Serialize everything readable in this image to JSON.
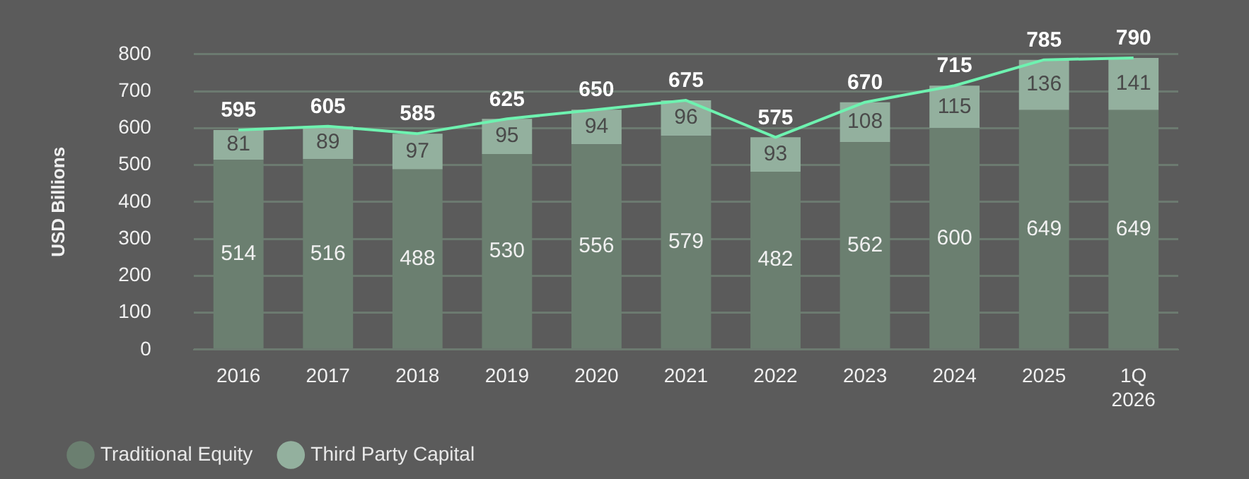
{
  "chart_data": {
    "type": "bar",
    "stacked": true,
    "ylabel": "USD Billions",
    "categories": [
      "2016",
      "2017",
      "2018",
      "2019",
      "2020",
      "2021",
      "2022",
      "2023",
      "2024",
      "2025",
      "1Q 2026"
    ],
    "series": [
      {
        "name": "Traditional Equity",
        "color": "#6b7f70",
        "values": [
          514,
          516,
          488,
          530,
          556,
          579,
          482,
          562,
          600,
          649,
          649
        ]
      },
      {
        "name": "Third Party Capital",
        "color": "#93b09e",
        "values": [
          81,
          89,
          97,
          95,
          94,
          96,
          93,
          108,
          115,
          136,
          141
        ]
      },
      {
        "type": "line",
        "color": "#6ef2b0",
        "values": [
          595,
          605,
          585,
          625,
          650,
          675,
          575,
          670,
          715,
          785,
          790
        ]
      }
    ],
    "ylim": [
      0,
      800
    ],
    "yticks": [
      0,
      100,
      200,
      300,
      400,
      500,
      600,
      700,
      800
    ],
    "grid": "y",
    "legend": "bottom left",
    "data_labels": true,
    "marker": "none"
  }
}
